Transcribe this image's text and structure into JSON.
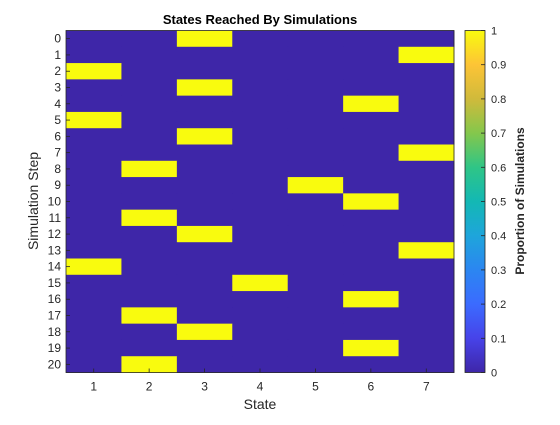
{
  "chart_data": {
    "type": "heatmap",
    "title": "States Reached By Simulations",
    "xlabel": "State",
    "ylabel": "Simulation Step",
    "colorbar_label": "Proportion of Simulations",
    "x": [
      "1",
      "2",
      "3",
      "4",
      "5",
      "6",
      "7"
    ],
    "y": [
      "0",
      "1",
      "2",
      "3",
      "4",
      "5",
      "6",
      "7",
      "8",
      "9",
      "10",
      "11",
      "12",
      "13",
      "14",
      "15",
      "16",
      "17",
      "18",
      "19",
      "20"
    ],
    "colorbar_ticks": [
      "0",
      "0.1",
      "0.2",
      "0.3",
      "0.4",
      "0.5",
      "0.6",
      "0.7",
      "0.8",
      "0.9",
      "1"
    ],
    "clim": [
      0,
      1
    ],
    "colormap": "parula",
    "values": [
      [
        0,
        0,
        1,
        0,
        0,
        0,
        0
      ],
      [
        0,
        0,
        0,
        0,
        0,
        0,
        1
      ],
      [
        1,
        0,
        0,
        0,
        0,
        0,
        0
      ],
      [
        0,
        0,
        1,
        0,
        0,
        0,
        0
      ],
      [
        0,
        0,
        0,
        0,
        0,
        1,
        0
      ],
      [
        1,
        0,
        0,
        0,
        0,
        0,
        0
      ],
      [
        0,
        0,
        1,
        0,
        0,
        0,
        0
      ],
      [
        0,
        0,
        0,
        0,
        0,
        0,
        1
      ],
      [
        0,
        1,
        0,
        0,
        0,
        0,
        0
      ],
      [
        0,
        0,
        0,
        0,
        1,
        0,
        0
      ],
      [
        0,
        0,
        0,
        0,
        0,
        1,
        0
      ],
      [
        0,
        1,
        0,
        0,
        0,
        0,
        0
      ],
      [
        0,
        0,
        1,
        0,
        0,
        0,
        0
      ],
      [
        0,
        0,
        0,
        0,
        0,
        0,
        1
      ],
      [
        1,
        0,
        0,
        0,
        0,
        0,
        0
      ],
      [
        0,
        0,
        0,
        1,
        0,
        0,
        0
      ],
      [
        0,
        0,
        0,
        0,
        0,
        1,
        0
      ],
      [
        0,
        1,
        0,
        0,
        0,
        0,
        0
      ],
      [
        0,
        0,
        1,
        0,
        0,
        0,
        0
      ],
      [
        0,
        0,
        0,
        0,
        0,
        1,
        0
      ],
      [
        0,
        1,
        0,
        0,
        0,
        0,
        0
      ]
    ]
  }
}
